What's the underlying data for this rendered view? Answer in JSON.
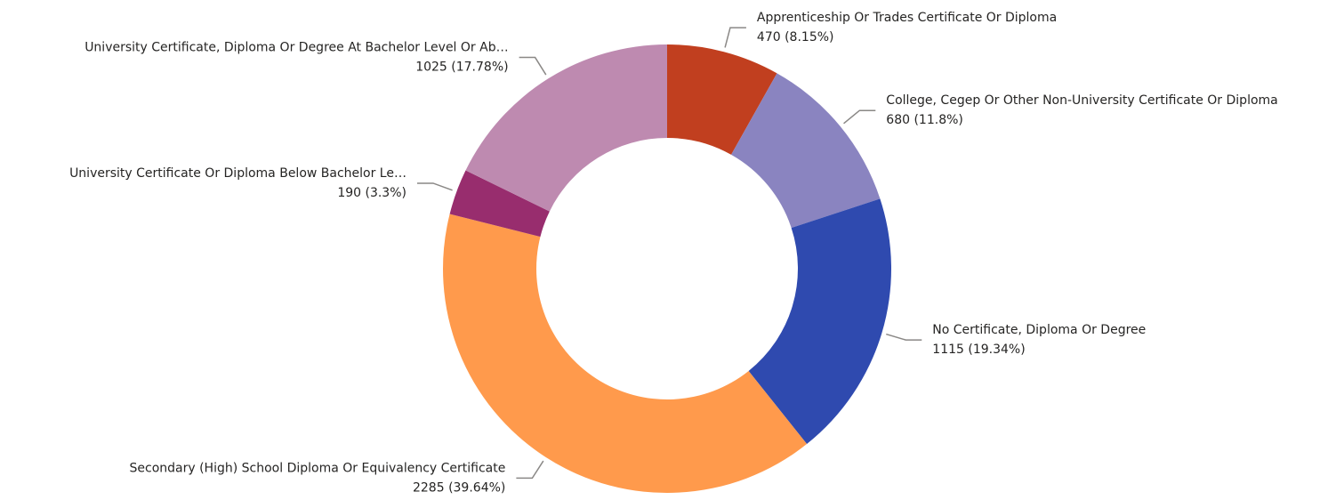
{
  "chart_data": {
    "type": "donut",
    "categories": [
      "Apprenticeship Or Trades Certificate Or Diploma",
      "College, Cegep Or Other Non-University Certificate Or Diploma",
      "No Certificate, Diploma Or Degree",
      "Secondary (High) School Diploma Or Equivalency Certificate",
      "University Certificate Or Diploma Below Bachelor Le…",
      "University Certificate, Diploma Or Degree At Bachelor Level Or Ab…"
    ],
    "values": [
      470,
      680,
      1115,
      2285,
      190,
      1025
    ],
    "value_labels": [
      "470 (8.15%)",
      "680 (11.8%)",
      "1115 (19.34%)",
      "2285 (39.64%)",
      "190 (3.3%)",
      "1025 (17.78%)"
    ],
    "colors": [
      "#c13f1f",
      "#8a84c0",
      "#2f4aaf",
      "#ff9a4c",
      "#982d6e",
      "#be8ab0"
    ]
  }
}
